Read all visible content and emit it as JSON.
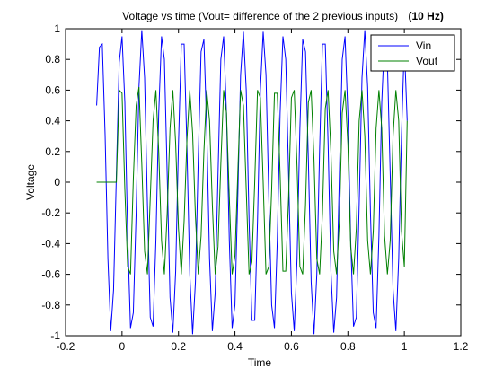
{
  "chart_data": {
    "type": "line",
    "title": "Voltage vs time (Vout= difference of the 2 previous inputs)",
    "title_suffix": "(10 Hz)",
    "xlabel": "Time",
    "ylabel": "Voltage",
    "xlim": [
      -0.2,
      1.2
    ],
    "ylim": [
      -1,
      1
    ],
    "xticks": [
      -0.2,
      0,
      0.2,
      0.4,
      0.6,
      0.8,
      1,
      1.2
    ],
    "xtick_labels": [
      "-0.2",
      "0",
      "0.2",
      "0.4",
      "0.6",
      "0.8",
      "1",
      "1.2"
    ],
    "yticks": [
      -1,
      -0.8,
      -0.6,
      -0.4,
      -0.2,
      0,
      0.2,
      0.4,
      0.6,
      0.8,
      1
    ],
    "ytick_labels": [
      "-1",
      "-0.8",
      "-0.6",
      "-0.4",
      "-0.2",
      "0",
      "0.2",
      "0.4",
      "0.6",
      "0.8",
      "1"
    ],
    "grid": false,
    "legend_position": "top-right",
    "series": [
      {
        "name": "Vin",
        "color": "#0000ff",
        "x": [
          -0.09,
          -0.08,
          -0.07,
          -0.06,
          -0.05,
          -0.04,
          -0.03,
          -0.02,
          -0.01,
          0.0,
          0.01,
          0.02,
          0.03,
          0.04,
          0.05,
          0.06,
          0.07,
          0.08,
          0.09,
          0.1,
          0.11,
          0.12,
          0.13,
          0.14,
          0.15,
          0.16,
          0.17,
          0.18,
          0.19,
          0.2,
          0.21,
          0.22,
          0.23,
          0.24,
          0.25,
          0.26,
          0.27,
          0.28,
          0.29,
          0.3,
          0.31,
          0.32,
          0.33,
          0.34,
          0.35,
          0.36,
          0.37,
          0.38,
          0.39,
          0.4,
          0.41,
          0.42,
          0.43,
          0.44,
          0.45,
          0.46,
          0.47,
          0.48,
          0.49,
          0.5,
          0.51,
          0.52,
          0.53,
          0.54,
          0.55,
          0.56,
          0.57,
          0.58,
          0.59,
          0.6,
          0.61,
          0.62,
          0.63,
          0.64,
          0.65,
          0.66,
          0.67,
          0.68,
          0.69,
          0.7,
          0.71,
          0.72,
          0.73,
          0.74,
          0.75,
          0.76,
          0.77,
          0.78,
          0.79,
          0.8,
          0.81,
          0.82,
          0.83,
          0.84,
          0.85,
          0.86,
          0.87,
          0.88,
          0.89,
          0.9,
          0.91,
          0.92,
          0.93,
          0.94,
          0.95,
          0.96,
          0.97,
          0.98,
          0.99,
          1.0,
          1.01
        ],
        "y": [
          0.5,
          0.88,
          0.9,
          0.31,
          -0.5,
          -0.97,
          -0.7,
          0.05,
          0.78,
          0.95,
          0.52,
          -0.35,
          -0.95,
          -0.85,
          -0.2,
          0.62,
          0.99,
          0.68,
          -0.15,
          -0.88,
          -0.94,
          -0.38,
          0.45,
          0.95,
          0.8,
          0.05,
          -0.75,
          -0.98,
          -0.58,
          0.25,
          0.9,
          0.9,
          0.22,
          -0.6,
          -0.99,
          -0.65,
          0.15,
          0.85,
          0.93,
          0.35,
          -0.5,
          -0.97,
          -0.72,
          0.05,
          0.8,
          0.95,
          0.45,
          -0.38,
          -0.95,
          -0.8,
          -0.1,
          0.7,
          0.98,
          0.6,
          -0.25,
          -0.9,
          -0.9,
          -0.25,
          0.6,
          0.98,
          0.7,
          -0.1,
          -0.8,
          -0.95,
          -0.38,
          0.45,
          0.95,
          0.8,
          0.05,
          -0.72,
          -0.97,
          -0.5,
          0.35,
          0.93,
          0.85,
          0.15,
          -0.65,
          -0.99,
          -0.6,
          0.22,
          0.9,
          0.9,
          0.25,
          -0.58,
          -0.98,
          -0.75,
          0.05,
          0.8,
          0.95,
          0.45,
          -0.38,
          -0.94,
          -0.88,
          -0.15,
          0.68,
          0.99,
          0.62,
          -0.2,
          -0.85,
          -0.95,
          -0.35,
          0.52,
          0.95,
          0.78,
          0.05,
          -0.7,
          -0.97,
          -0.5,
          0.31,
          0.9,
          0.4
        ]
      },
      {
        "name": "Vout",
        "color": "#008000",
        "x": [
          -0.09,
          -0.08,
          -0.07,
          -0.06,
          -0.05,
          -0.04,
          -0.03,
          -0.02,
          -0.01,
          0.0,
          0.01,
          0.02,
          0.03,
          0.04,
          0.05,
          0.06,
          0.07,
          0.08,
          0.09,
          0.1,
          0.11,
          0.12,
          0.13,
          0.14,
          0.15,
          0.16,
          0.17,
          0.18,
          0.19,
          0.2,
          0.21,
          0.22,
          0.23,
          0.24,
          0.25,
          0.26,
          0.27,
          0.28,
          0.29,
          0.3,
          0.31,
          0.32,
          0.33,
          0.34,
          0.35,
          0.36,
          0.37,
          0.38,
          0.39,
          0.4,
          0.41,
          0.42,
          0.43,
          0.44,
          0.45,
          0.46,
          0.47,
          0.48,
          0.49,
          0.5,
          0.51,
          0.52,
          0.53,
          0.54,
          0.55,
          0.56,
          0.57,
          0.58,
          0.59,
          0.6,
          0.61,
          0.62,
          0.63,
          0.64,
          0.65,
          0.66,
          0.67,
          0.68,
          0.69,
          0.7,
          0.71,
          0.72,
          0.73,
          0.74,
          0.75,
          0.76,
          0.77,
          0.78,
          0.79,
          0.8,
          0.81,
          0.82,
          0.83,
          0.84,
          0.85,
          0.86,
          0.87,
          0.88,
          0.89,
          0.9,
          0.91,
          0.92,
          0.93,
          0.94,
          0.95,
          0.96,
          0.97,
          0.98,
          0.99,
          1.0,
          1.01
        ],
        "y": [
          0.0,
          0.0,
          0.0,
          0.0,
          0.0,
          0.0,
          0.0,
          0.0,
          0.6,
          0.58,
          -0.05,
          -0.55,
          -0.6,
          0.02,
          0.5,
          0.62,
          0.12,
          -0.45,
          -0.6,
          -0.1,
          0.4,
          0.6,
          0.2,
          -0.38,
          -0.6,
          -0.2,
          0.35,
          0.6,
          0.25,
          -0.3,
          -0.6,
          -0.25,
          0.28,
          0.6,
          0.32,
          -0.22,
          -0.6,
          -0.35,
          0.2,
          0.6,
          0.4,
          -0.15,
          -0.6,
          -0.42,
          0.12,
          0.6,
          0.45,
          -0.1,
          -0.6,
          -0.48,
          0.05,
          0.6,
          0.5,
          -0.05,
          -0.6,
          -0.52,
          0.0,
          0.6,
          0.55,
          0.0,
          -0.6,
          -0.55,
          -0.05,
          0.58,
          0.58,
          0.05,
          -0.58,
          -0.58,
          -0.1,
          0.55,
          0.6,
          0.1,
          -0.55,
          -0.6,
          -0.15,
          0.52,
          0.6,
          0.15,
          -0.5,
          -0.6,
          -0.2,
          0.48,
          0.6,
          0.2,
          -0.45,
          -0.6,
          -0.25,
          0.45,
          0.6,
          0.25,
          -0.42,
          -0.6,
          -0.3,
          0.4,
          0.6,
          0.3,
          -0.38,
          -0.6,
          -0.32,
          0.35,
          0.6,
          0.35,
          -0.35,
          -0.6,
          -0.38,
          0.3,
          0.6,
          0.4,
          -0.32,
          -0.55,
          0.4
        ]
      }
    ]
  }
}
